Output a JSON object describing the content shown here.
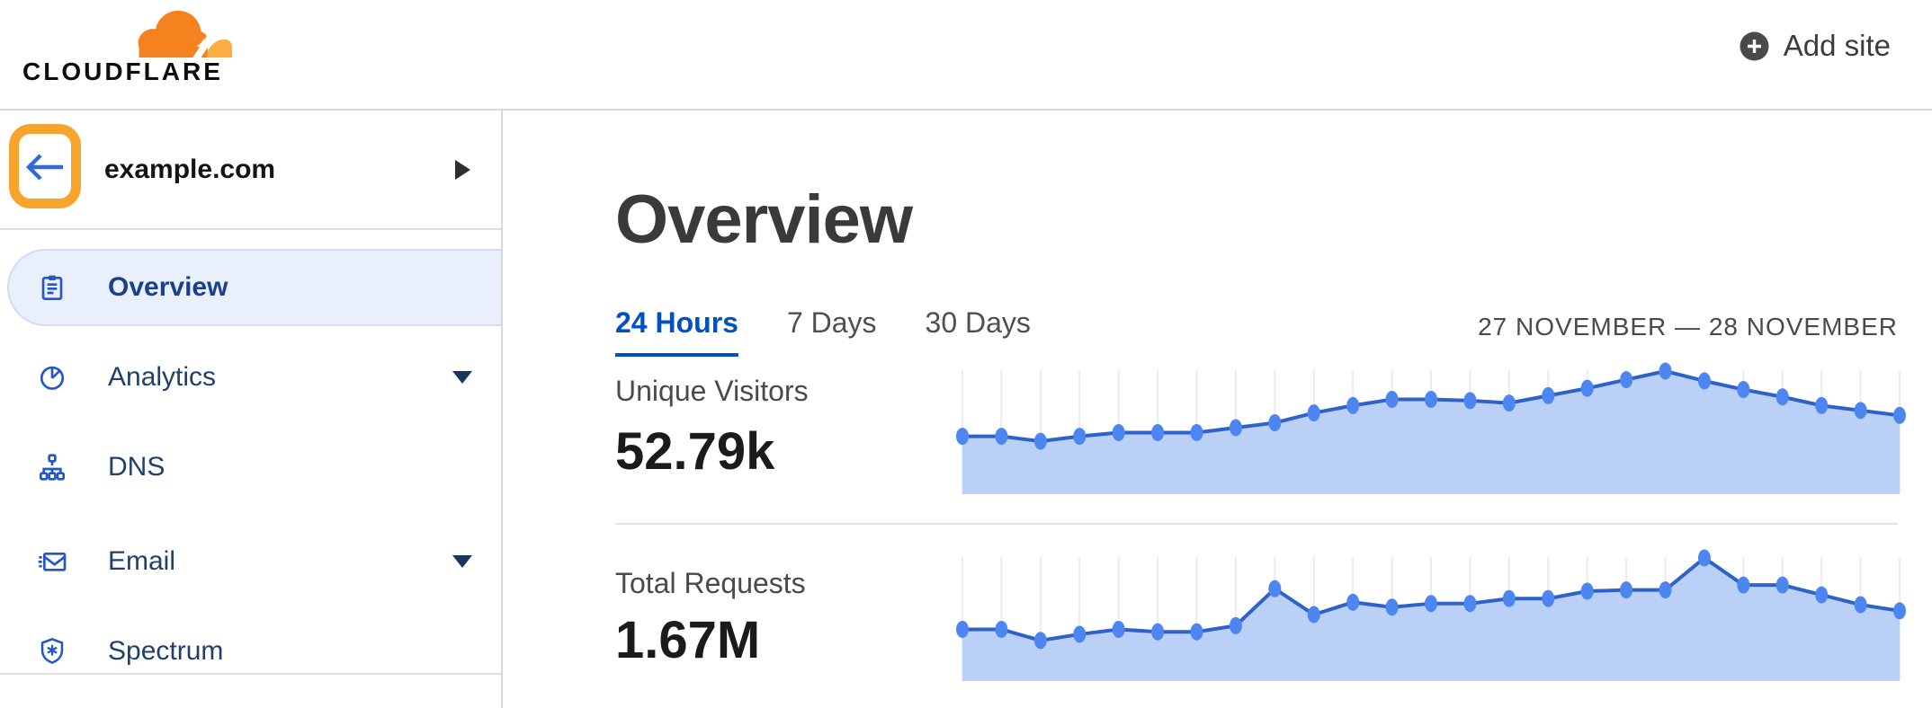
{
  "header": {
    "wordmark": "CLOUDFLARE",
    "add_site_label": "Add site"
  },
  "sidebar": {
    "site_name": "example.com",
    "items": [
      {
        "label": "Overview",
        "icon": "clipboard-icon",
        "selected": true,
        "expandable": false
      },
      {
        "label": "Analytics",
        "icon": "pie-chart-icon",
        "selected": false,
        "expandable": true
      },
      {
        "label": "DNS",
        "icon": "sitemap-icon",
        "selected": false,
        "expandable": false
      },
      {
        "label": "Email",
        "icon": "envelope-icon",
        "selected": false,
        "expandable": true
      },
      {
        "label": "Spectrum",
        "icon": "shield-icon",
        "selected": false,
        "expandable": false
      }
    ],
    "annotation": "orange highlight box around back-arrow button"
  },
  "main": {
    "title": "Overview",
    "tabs": [
      {
        "label": "24 Hours",
        "active": true
      },
      {
        "label": "7 Days",
        "active": false
      },
      {
        "label": "30 Days",
        "active": false
      }
    ],
    "date_range": "27 NOVEMBER — 28 NOVEMBER"
  },
  "chart_data": [
    {
      "type": "area",
      "title": "Unique Visitors",
      "value_label": "52.79k",
      "xlabel": "hourly points across 24-hour window (no tick labels shown)",
      "ylabel": "relative visitors (no axis shown)",
      "ylim": [
        0,
        100
      ],
      "grid": "vertical-only",
      "legend": "none",
      "values": [
        47,
        47,
        43,
        47,
        50,
        50,
        50,
        54,
        58,
        66,
        72,
        77,
        77,
        76,
        74,
        80,
        86,
        93,
        100,
        92,
        85,
        79,
        72,
        68,
        64
      ]
    },
    {
      "type": "area",
      "title": "Total Requests",
      "value_label": "1.67M",
      "xlabel": "hourly points across 24-hour window (no tick labels shown)",
      "ylabel": "relative requests (no axis shown)",
      "ylim": [
        0,
        100
      ],
      "grid": "vertical-only",
      "legend": "none",
      "values": [
        42,
        42,
        33,
        38,
        42,
        40,
        40,
        45,
        75,
        54,
        64,
        60,
        63,
        63,
        67,
        67,
        73,
        74,
        74,
        100,
        78,
        78,
        70,
        62,
        57
      ]
    }
  ],
  "icons": {
    "cloudflare-cloud-icon": "orange cloud logo",
    "plus-circle-icon": "⊕ dark circle with white plus",
    "back-arrow-icon": "← blue left arrow",
    "caret-right-icon": "▶ expand site switcher",
    "caret-down-icon": "▼ expandable nav section",
    "clipboard-icon": "clipboard / report",
    "pie-chart-icon": "pie chart",
    "sitemap-icon": "node hierarchy",
    "envelope-icon": "envelope with speed lines",
    "shield-icon": "shield with asterisk"
  },
  "colors": {
    "brand_orange": "#f6821f",
    "brand_orange_light": "#fbad41",
    "annotation_highlight": "#f7a42d",
    "link_blue": "#0051c3",
    "icon_blue": "#2456c5",
    "nav_text": "#20406b",
    "nav_text_selected": "#1c3f8d",
    "selected_pill_bg": "#e9effb",
    "chart_fill": "#bad0f6",
    "chart_line": "#2e62c8",
    "chart_dot": "#4d86f0",
    "chart_grid": "#ebebf0",
    "divider": "#dedede",
    "heading_text": "#3a3a3a"
  }
}
